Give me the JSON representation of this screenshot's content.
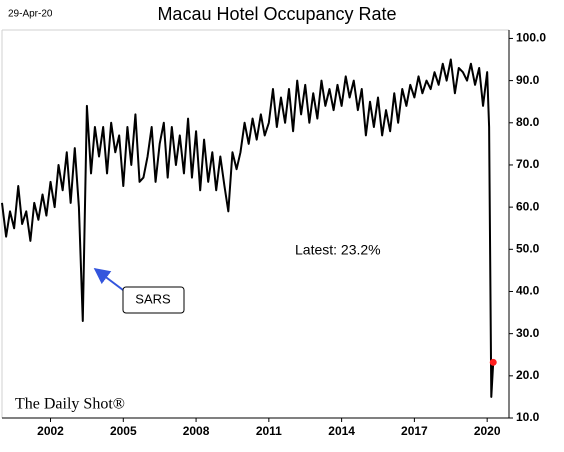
{
  "chart_data": {
    "type": "line",
    "title": "Macau Hotel Occupancy Rate",
    "date_label": "29-Apr-20",
    "annotation": "Latest:  23.2%",
    "callout": "SARS",
    "source": "The Daily Shot®",
    "color": "#000000",
    "last_point_color": "#ff2020",
    "x": [
      2000,
      2000.17,
      2000.33,
      2000.5,
      2000.67,
      2000.83,
      2001,
      2001.17,
      2001.33,
      2001.5,
      2001.67,
      2001.83,
      2002,
      2002.17,
      2002.33,
      2002.5,
      2002.67,
      2002.83,
      2003,
      2003.17,
      2003.33,
      2003.5,
      2003.67,
      2003.83,
      2004,
      2004.17,
      2004.33,
      2004.5,
      2004.67,
      2004.83,
      2005,
      2005.17,
      2005.33,
      2005.5,
      2005.67,
      2005.83,
      2006,
      2006.17,
      2006.33,
      2006.5,
      2006.67,
      2006.83,
      2007,
      2007.17,
      2007.33,
      2007.5,
      2007.67,
      2007.83,
      2008,
      2008.17,
      2008.33,
      2008.5,
      2008.67,
      2008.83,
      2009,
      2009.17,
      2009.33,
      2009.5,
      2009.67,
      2009.83,
      2010,
      2010.17,
      2010.33,
      2010.5,
      2010.67,
      2010.83,
      2011,
      2011.17,
      2011.33,
      2011.5,
      2011.67,
      2011.83,
      2012,
      2012.17,
      2012.33,
      2012.5,
      2012.67,
      2012.83,
      2013,
      2013.17,
      2013.33,
      2013.5,
      2013.67,
      2013.83,
      2014,
      2014.17,
      2014.33,
      2014.5,
      2014.67,
      2014.83,
      2015,
      2015.17,
      2015.33,
      2015.5,
      2015.67,
      2015.83,
      2016,
      2016.17,
      2016.33,
      2016.5,
      2016.67,
      2016.83,
      2017,
      2017.17,
      2017.33,
      2017.5,
      2017.67,
      2017.83,
      2018,
      2018.17,
      2018.33,
      2018.5,
      2018.67,
      2018.83,
      2019,
      2019.17,
      2019.33,
      2019.5,
      2019.67,
      2019.83,
      2020,
      2020.08,
      2020.17,
      2020.25
    ],
    "values": [
      61,
      53,
      59,
      55,
      65,
      56,
      59,
      52,
      61,
      57,
      63,
      58,
      66,
      60,
      70,
      64,
      73,
      61,
      74,
      60,
      33,
      84,
      68,
      79,
      72,
      79,
      68,
      80,
      73,
      77,
      65,
      79,
      70,
      82,
      66,
      67,
      72,
      79,
      66,
      75,
      80,
      67,
      79,
      70,
      77,
      68,
      81,
      67,
      78,
      64,
      76,
      66,
      73,
      64,
      72,
      65,
      59,
      73,
      69,
      73,
      80,
      75,
      81,
      76,
      82,
      77,
      80,
      88,
      79,
      86,
      80,
      88,
      78,
      90,
      82,
      89,
      80,
      87,
      81,
      90,
      84,
      88,
      83,
      89,
      84,
      91,
      86,
      90,
      83,
      88,
      77,
      85,
      79,
      86,
      77,
      83,
      78,
      87,
      80,
      88,
      84,
      89,
      86,
      91,
      87,
      90,
      88,
      92,
      89,
      94,
      90,
      95,
      87,
      93,
      92,
      90,
      94,
      89,
      93,
      84,
      92,
      79,
      15,
      23.2
    ],
    "xlim": [
      2000,
      2020.9
    ],
    "xticks": [
      2002,
      2005,
      2008,
      2011,
      2014,
      2017,
      2020
    ],
    "ylim": [
      10,
      102
    ],
    "yticks": [
      {
        "value": 10,
        "label": "10.0"
      },
      {
        "value": 20,
        "label": "20.0"
      },
      {
        "value": 30,
        "label": "30.0"
      },
      {
        "value": 40,
        "label": "40.0"
      },
      {
        "value": 50,
        "label": "50.0"
      },
      {
        "value": 60,
        "label": "60.0"
      },
      {
        "value": 70,
        "label": "70.0"
      },
      {
        "value": 80,
        "label": "80.0"
      },
      {
        "value": 90,
        "label": "90.0"
      },
      {
        "value": 100,
        "label": "100.0"
      }
    ],
    "grid": false
  }
}
